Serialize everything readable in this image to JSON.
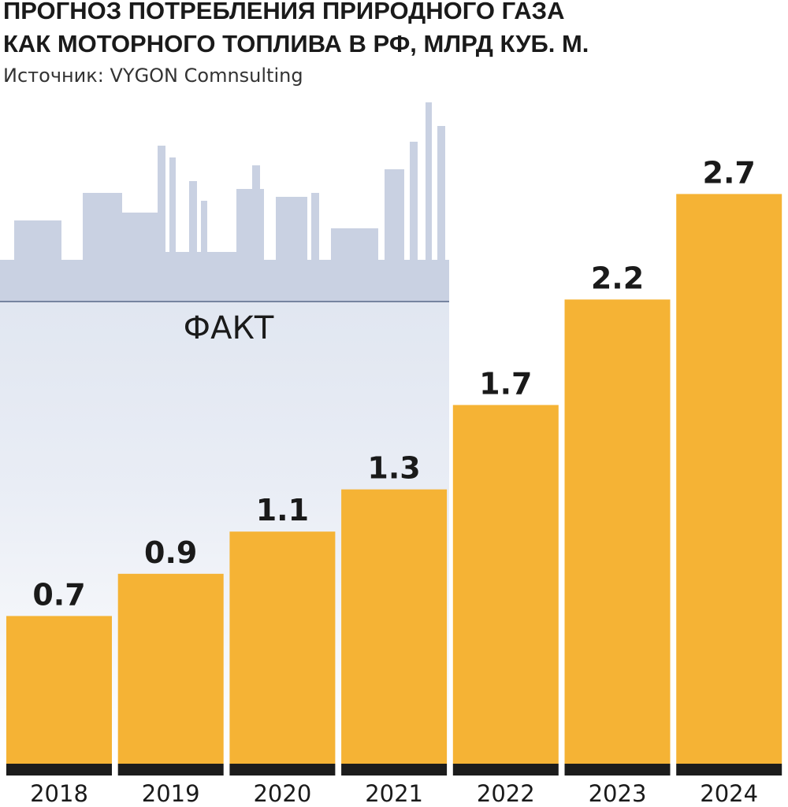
{
  "chart_data": {
    "type": "bar",
    "title": [
      "ПРОГНОЗ ПОТРЕБЛЕНИЯ ПРИРОДНОГО ГАЗА",
      "КАК МОТОРНОГО ТОПЛИВА В РФ, МЛРД КУБ. М."
    ],
    "subtitle": "Источник: VYGON Comnsulting",
    "annotation": "ФАКТ",
    "categories": [
      "2018",
      "2019",
      "2020",
      "2021",
      "2022",
      "2023",
      "2024"
    ],
    "values": [
      0.7,
      0.9,
      1.1,
      1.3,
      1.7,
      2.2,
      2.7
    ],
    "color": "#f5b335"
  }
}
